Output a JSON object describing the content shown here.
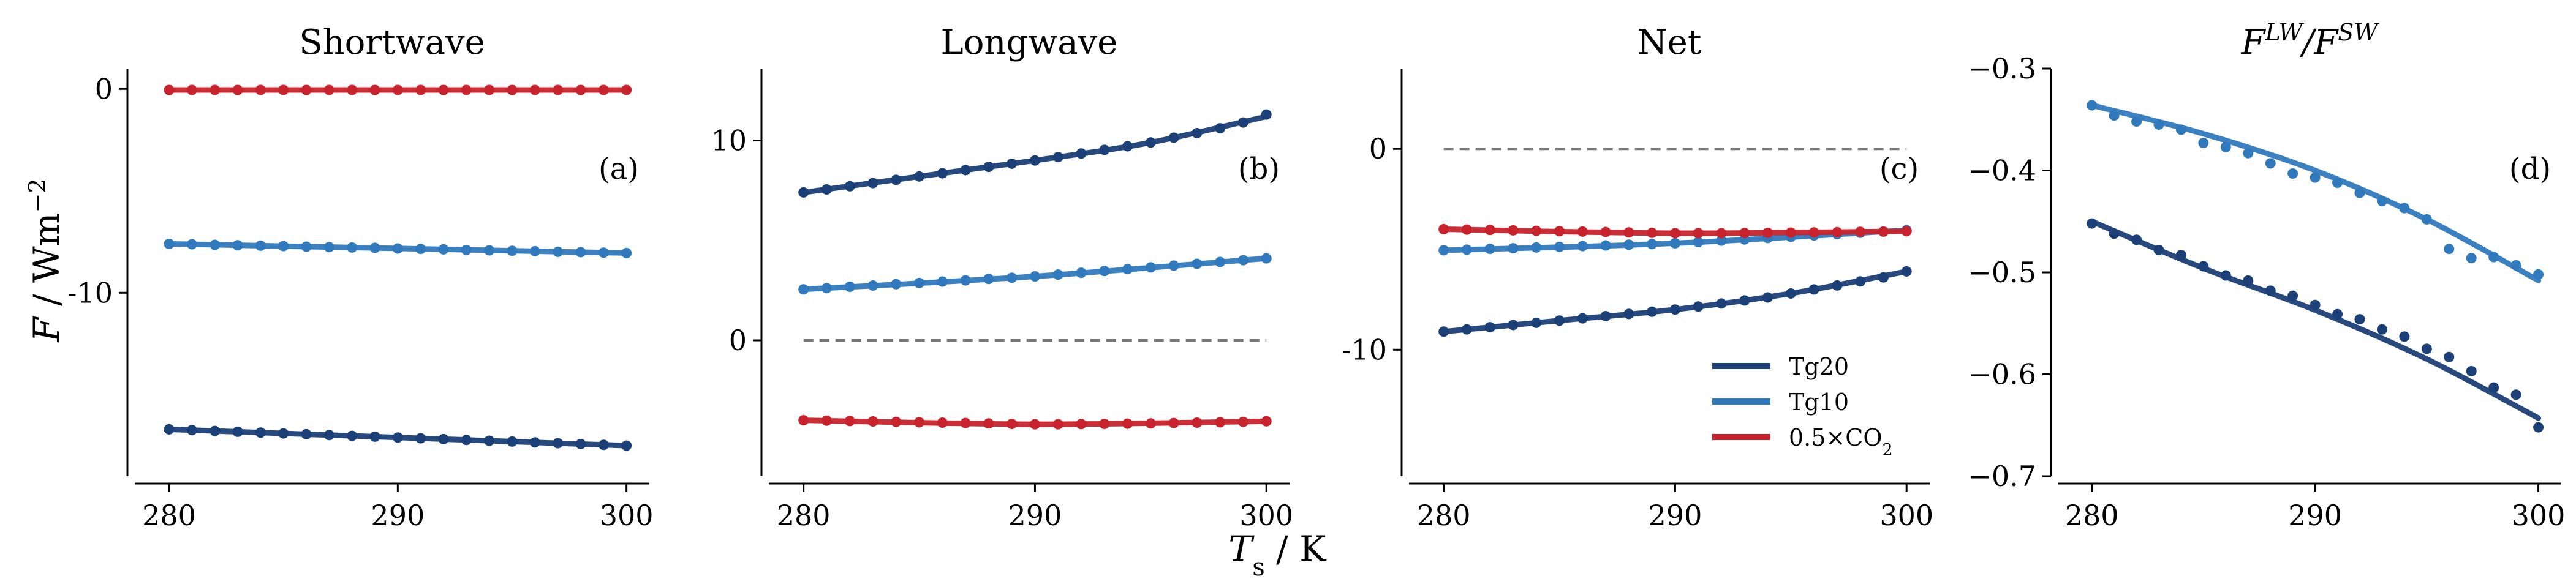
{
  "figure": {
    "xlabel_main": "T",
    "xlabel_sub": "s",
    "xlabel_unit": " / K",
    "ylabel_main": "F",
    "ylabel_unit": " / Wm",
    "ylabel_sup": "−2"
  },
  "chart_data": [
    {
      "type": "line",
      "title": "Shortwave",
      "panel_label": "(a)",
      "xlim": [
        278.5,
        301.0
      ],
      "ylim": [
        -19.0,
        1.0
      ],
      "xticks": [
        280,
        290,
        300
      ],
      "xtick_labels": [
        "280",
        "290",
        "300"
      ],
      "yticks": [
        0,
        -10
      ],
      "ytick_labels": [
        "0",
        "-10"
      ],
      "zero_dashed": false,
      "grid": false,
      "series": [
        {
          "name": "Tg20",
          "color": "#1b3f77",
          "fit": [
            [
              280,
              -16.7
            ],
            [
              300,
              -17.5
            ]
          ],
          "x_start": 280,
          "x_step": 1,
          "values": [
            -16.7,
            -16.74,
            -16.78,
            -16.82,
            -16.86,
            -16.9,
            -16.94,
            -16.98,
            -17.02,
            -17.06,
            -17.1,
            -17.14,
            -17.18,
            -17.22,
            -17.26,
            -17.3,
            -17.34,
            -17.38,
            -17.42,
            -17.46,
            -17.5
          ]
        },
        {
          "name": "Tg10",
          "color": "#3079bd",
          "fit": [
            [
              280,
              -7.6
            ],
            [
              300,
              -8.05
            ]
          ],
          "x_start": 280,
          "x_step": 1,
          "values": [
            -7.6,
            -7.62,
            -7.65,
            -7.67,
            -7.69,
            -7.71,
            -7.74,
            -7.76,
            -7.78,
            -7.8,
            -7.83,
            -7.85,
            -7.87,
            -7.9,
            -7.92,
            -7.94,
            -7.96,
            -7.99,
            -8.01,
            -8.03,
            -8.05
          ]
        },
        {
          "name": "0.5×CO2",
          "color": "#c8232c",
          "fit": [
            [
              280,
              -0.05
            ],
            [
              300,
              -0.05
            ]
          ],
          "x_start": 280,
          "x_step": 1,
          "values": [
            -0.05,
            -0.05,
            -0.05,
            -0.05,
            -0.05,
            -0.05,
            -0.05,
            -0.05,
            -0.05,
            -0.05,
            -0.05,
            -0.05,
            -0.05,
            -0.05,
            -0.05,
            -0.05,
            -0.05,
            -0.05,
            -0.05,
            -0.05,
            -0.05
          ]
        }
      ]
    },
    {
      "type": "line",
      "title": "Longwave",
      "panel_label": "(b)",
      "xlim": [
        278.5,
        301.0
      ],
      "ylim": [
        -6.8,
        13.6
      ],
      "xticks": [
        280,
        290,
        300
      ],
      "xtick_labels": [
        "280",
        "290",
        "300"
      ],
      "yticks": [
        10,
        0
      ],
      "ytick_labels": [
        "10",
        "0"
      ],
      "zero_dashed": true,
      "grid": false,
      "series": [
        {
          "name": "Tg20",
          "color": "#1b3f77",
          "fit": [
            [
              280,
              7.4
            ],
            [
              285,
              8.2
            ],
            [
              290,
              9.0
            ],
            [
              295,
              9.9
            ],
            [
              300,
              11.2
            ]
          ],
          "x_start": 280,
          "x_step": 1,
          "values": [
            7.4,
            7.55,
            7.71,
            7.87,
            8.03,
            8.2,
            8.36,
            8.52,
            8.68,
            8.84,
            9.0,
            9.17,
            9.35,
            9.53,
            9.71,
            9.9,
            10.14,
            10.37,
            10.61,
            10.9,
            11.3
          ]
        },
        {
          "name": "Tg10",
          "color": "#3079bd",
          "fit": [
            [
              280,
              2.55
            ],
            [
              290,
              3.2
            ],
            [
              300,
              4.1
            ]
          ],
          "x_start": 280,
          "x_step": 1,
          "values": [
            2.55,
            2.61,
            2.68,
            2.74,
            2.81,
            2.87,
            2.94,
            3.0,
            3.07,
            3.13,
            3.2,
            3.29,
            3.38,
            3.47,
            3.56,
            3.65,
            3.74,
            3.83,
            3.92,
            4.01,
            4.1
          ]
        },
        {
          "name": "0.5×CO2",
          "color": "#c8232c",
          "fit": [
            [
              280,
              -4.0
            ],
            [
              290,
              -4.2
            ],
            [
              300,
              -4.05
            ]
          ],
          "x_start": 280,
          "x_step": 1,
          "values": [
            -4.0,
            -4.02,
            -4.04,
            -4.06,
            -4.08,
            -4.1,
            -4.12,
            -4.14,
            -4.16,
            -4.18,
            -4.2,
            -4.2,
            -4.19,
            -4.18,
            -4.17,
            -4.16,
            -4.14,
            -4.12,
            -4.1,
            -4.08,
            -4.05
          ]
        }
      ]
    },
    {
      "type": "line",
      "title": "Net",
      "panel_label": "(c)",
      "xlim": [
        278.5,
        301.0
      ],
      "ylim": [
        -16.3,
        4.0
      ],
      "xticks": [
        280,
        290,
        300
      ],
      "xtick_labels": [
        "280",
        "290",
        "300"
      ],
      "yticks": [
        0,
        -10
      ],
      "ytick_labels": [
        "0",
        "-10"
      ],
      "zero_dashed": true,
      "grid": false,
      "legend": {
        "location": "lower-right",
        "entries": [
          "Tg20",
          "Tg10",
          "0.5×CO"
        ],
        "entry_subscripts": [
          "",
          "",
          "2"
        ]
      },
      "series": [
        {
          "name": "Tg20",
          "color": "#1b3f77",
          "fit": [
            [
              280,
              -9.1
            ],
            [
              285,
              -8.55
            ],
            [
              290,
              -8.0
            ],
            [
              295,
              -7.2
            ],
            [
              300,
              -6.1
            ]
          ],
          "x_start": 280,
          "x_step": 1,
          "values": [
            -9.1,
            -8.99,
            -8.88,
            -8.77,
            -8.66,
            -8.55,
            -8.44,
            -8.33,
            -8.22,
            -8.11,
            -8.0,
            -7.85,
            -7.7,
            -7.55,
            -7.4,
            -7.2,
            -7.0,
            -6.8,
            -6.6,
            -6.4,
            -6.1
          ]
        },
        {
          "name": "Tg10",
          "color": "#3079bd",
          "fit": [
            [
              280,
              -5.05
            ],
            [
              290,
              -4.7
            ],
            [
              300,
              -4.05
            ]
          ],
          "x_start": 280,
          "x_step": 1,
          "values": [
            -5.05,
            -5.02,
            -4.98,
            -4.95,
            -4.91,
            -4.88,
            -4.84,
            -4.81,
            -4.77,
            -4.74,
            -4.7,
            -4.64,
            -4.57,
            -4.51,
            -4.44,
            -4.38,
            -4.31,
            -4.25,
            -4.18,
            -4.12,
            -4.05
          ]
        },
        {
          "name": "0.5×CO2",
          "color": "#c8232c",
          "fit": [
            [
              280,
              -4.0
            ],
            [
              290,
              -4.2
            ],
            [
              300,
              -4.1
            ]
          ],
          "x_start": 280,
          "x_step": 1,
          "values": [
            -4.0,
            -4.02,
            -4.04,
            -4.06,
            -4.08,
            -4.1,
            -4.12,
            -4.14,
            -4.16,
            -4.18,
            -4.2,
            -4.2,
            -4.2,
            -4.19,
            -4.18,
            -4.17,
            -4.16,
            -4.15,
            -4.13,
            -4.12,
            -4.1
          ]
        }
      ]
    },
    {
      "type": "scatter",
      "title_main": "F",
      "title_sup1": "LW",
      "title_sep": "/F",
      "title_sup2": "SW",
      "panel_label": "(d)",
      "xlim": [
        278.5,
        301.0
      ],
      "ylim": [
        -0.7,
        -0.3
      ],
      "xticks": [
        280,
        290,
        300
      ],
      "xtick_labels": [
        "280",
        "290",
        "300"
      ],
      "yticks": [
        -0.3,
        -0.4,
        -0.5,
        -0.6,
        -0.7
      ],
      "ytick_labels": [
        "−0.3",
        "−0.4",
        "−0.5",
        "−0.6",
        "−0.7"
      ],
      "zero_dashed": false,
      "grid": false,
      "series": [
        {
          "name": "Tg20",
          "color": "#1b3f77",
          "fit": [
            [
              280,
              -0.45
            ],
            [
              285,
              -0.496
            ],
            [
              290,
              -0.537
            ],
            [
              295,
              -0.585
            ],
            [
              300,
              -0.643
            ]
          ],
          "x_start": 280,
          "x_step": 1,
          "values": [
            -0.452,
            -0.462,
            -0.468,
            -0.478,
            -0.483,
            -0.494,
            -0.503,
            -0.508,
            -0.518,
            -0.523,
            -0.532,
            -0.541,
            -0.546,
            -0.556,
            -0.563,
            -0.575,
            -0.583,
            -0.597,
            -0.613,
            -0.62,
            -0.652
          ]
        },
        {
          "name": "Tg10",
          "color": "#3079bd",
          "fit": [
            [
              280,
              -0.336
            ],
            [
              285,
              -0.364
            ],
            [
              290,
              -0.4
            ],
            [
              295,
              -0.448
            ],
            [
              300,
              -0.508
            ]
          ],
          "x_start": 280,
          "x_step": 1,
          "values": [
            -0.336,
            -0.346,
            -0.352,
            -0.355,
            -0.36,
            -0.373,
            -0.377,
            -0.383,
            -0.393,
            -0.403,
            -0.407,
            -0.412,
            -0.422,
            -0.43,
            -0.437,
            -0.448,
            -0.477,
            -0.486,
            -0.485,
            -0.493,
            -0.502
          ]
        }
      ]
    }
  ]
}
